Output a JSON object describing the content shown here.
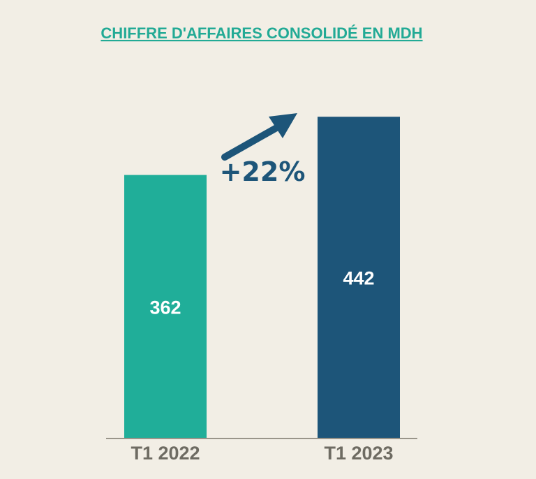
{
  "chart_data": {
    "type": "bar",
    "title": "CHIFFRE D'AFFAIRES CONSOLIDÉ EN MDH",
    "categories": [
      "T1 2022",
      "T1 2023"
    ],
    "values": [
      362,
      442
    ],
    "data_labels": [
      "362",
      "442"
    ],
    "annotation": "+22%",
    "xlabel": "",
    "ylabel": "",
    "ylim": [
      0,
      470
    ],
    "grid": false,
    "legend": "none"
  },
  "colors": {
    "background": "#f2eee5",
    "title": "#22aa95",
    "bars": [
      "#20ae99",
      "#1d5579"
    ],
    "bar_label": "#ffffff",
    "tick_label": "#6e6b62",
    "axis": "#9a958a",
    "arrow": "#1d5579"
  }
}
